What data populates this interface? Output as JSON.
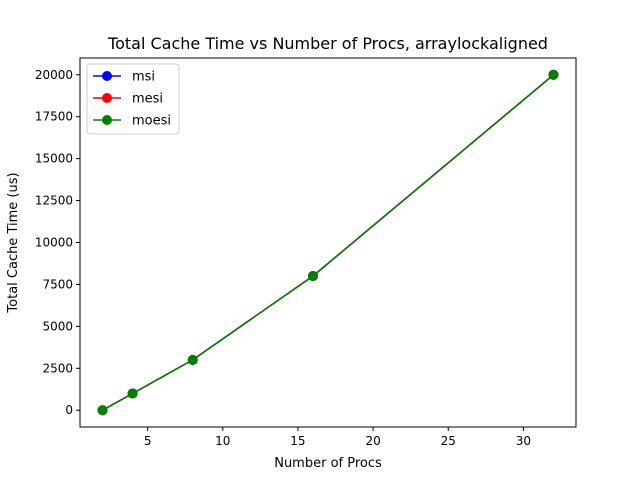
{
  "chart_data": {
    "type": "line",
    "title": "Total Cache Time vs Number of Procs, arraylockaligned",
    "xlabel": "Number of Procs",
    "ylabel": "Total Cache Time (us)",
    "xlim": [
      0.5,
      33.5
    ],
    "ylim": [
      -1000,
      21000
    ],
    "xticks": [
      5,
      10,
      15,
      20,
      25,
      30
    ],
    "yticks": [
      0,
      2500,
      5000,
      7500,
      10000,
      12500,
      15000,
      17500,
      20000
    ],
    "grid": false,
    "legend_position": "upper-left",
    "x": [
      2,
      4,
      8,
      16,
      32
    ],
    "series": [
      {
        "name": "msi",
        "color": "#0000ff",
        "marker": "circle",
        "values": [
          0,
          1000,
          3000,
          8000,
          20000
        ]
      },
      {
        "name": "mesi",
        "color": "#ff0000",
        "marker": "circle",
        "values": [
          0,
          1000,
          3000,
          8000,
          20000
        ]
      },
      {
        "name": "moesi",
        "color": "#008000",
        "marker": "circle",
        "values": [
          0,
          1000,
          3000,
          8000,
          20000
        ]
      }
    ]
  }
}
